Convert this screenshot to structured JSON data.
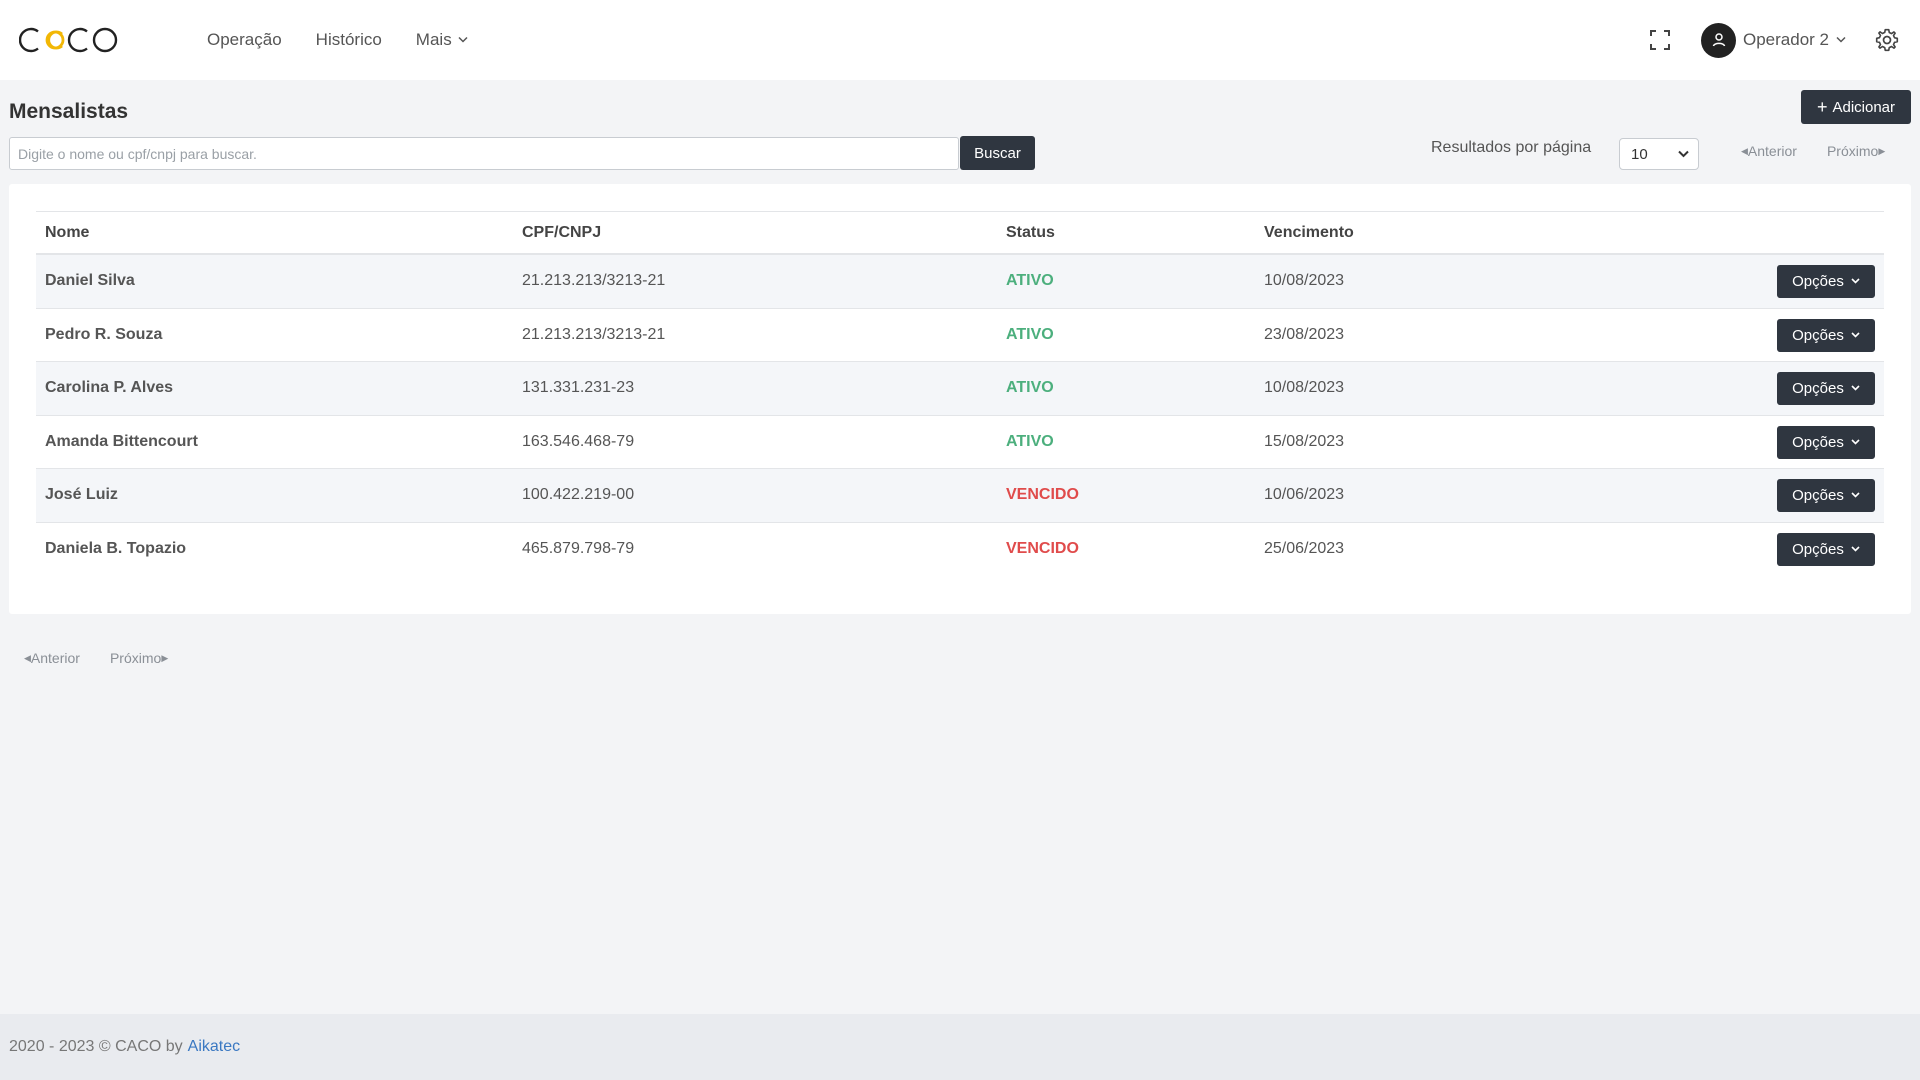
{
  "app": {
    "logo_text": "CACO",
    "nav": [
      {
        "label": "Operação"
      },
      {
        "label": "Histórico"
      },
      {
        "label": "Mais"
      }
    ],
    "user_name": "Operador 2"
  },
  "page": {
    "title": "Mensalistas",
    "add_label": "Adicionar",
    "search_placeholder": "Digite o nome ou cpf/cnpj para buscar.",
    "search_button": "Buscar",
    "per_page_label": "Resultados por página",
    "per_page_value": "10",
    "prev_label": "Anterior",
    "next_label": "Próximo"
  },
  "table": {
    "headers": {
      "name": "Nome",
      "cpf": "CPF/CNPJ",
      "status": "Status",
      "due": "Vencimento"
    },
    "option_label": "Opções",
    "rows": [
      {
        "name": "Daniel Silva",
        "cpf": "21.213.213/3213-21",
        "status": "ATIVO",
        "due": "10/08/2023"
      },
      {
        "name": "Pedro R. Souza",
        "cpf": "21.213.213/3213-21",
        "status": "ATIVO",
        "due": "23/08/2023"
      },
      {
        "name": "Carolina P. Alves",
        "cpf": "131.331.231-23",
        "status": "ATIVO",
        "due": "10/08/2023"
      },
      {
        "name": "Amanda Bittencourt",
        "cpf": "163.546.468-79",
        "status": "ATIVO",
        "due": "15/08/2023"
      },
      {
        "name": "José Luiz",
        "cpf": "100.422.219-00",
        "status": "VENCIDO",
        "due": "10/06/2023"
      },
      {
        "name": "Daniela B. Topazio",
        "cpf": "465.879.798-79",
        "status": "VENCIDO",
        "due": "25/06/2023"
      }
    ]
  },
  "footer": {
    "text": "2020 - 2023 © CACO by",
    "link": "Aikatec"
  },
  "colors": {
    "dark_button": "#2f3640",
    "status_active": "#4caf7d",
    "status_overdue": "#e04b4b",
    "logo_accent": "#f2b705",
    "link": "#3a78c2"
  },
  "icons": [
    "fullscreen-icon",
    "user-icon",
    "gear-icon",
    "chevron-down-icon",
    "plus-icon",
    "caret-left-icon",
    "caret-right-icon"
  ]
}
